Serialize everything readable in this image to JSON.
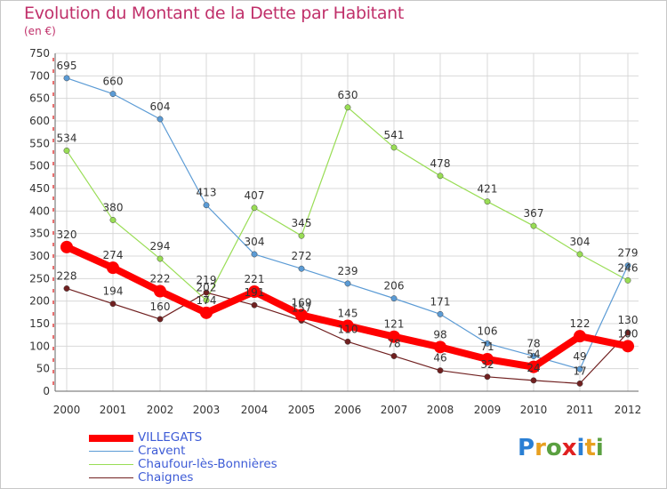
{
  "chart_data": {
    "type": "line",
    "title": "Evolution du Montant de la Dette par Habitant",
    "subtitle": "(en €)",
    "categories": [
      "2000",
      "2001",
      "2002",
      "2003",
      "2004",
      "2005",
      "2006",
      "2007",
      "2008",
      "2009",
      "2010",
      "2011",
      "2012"
    ],
    "ylim": [
      0,
      750
    ],
    "yticks": [
      0,
      50,
      100,
      150,
      200,
      250,
      300,
      350,
      400,
      450,
      500,
      550,
      600,
      650,
      700,
      750
    ],
    "grid": true,
    "legend_position": "bottom-left",
    "series": [
      {
        "name": "VILLEGATS",
        "color": "#ff0000",
        "values": [
          320,
          274,
          222,
          174,
          221,
          169,
          145,
          121,
          98,
          71,
          54,
          122,
          100
        ],
        "labels": [
          "320",
          "274",
          "222",
          "174",
          "221",
          "169",
          "145",
          "121",
          "98",
          "71",
          "54",
          "122",
          "100"
        ]
      },
      {
        "name": "Cravent",
        "color": "#5b9bd5",
        "values": [
          695,
          660,
          604,
          413,
          304,
          272,
          239,
          206,
          171,
          106,
          78,
          49,
          279
        ],
        "labels": [
          "695",
          "660",
          "604",
          "413",
          "304",
          "272",
          "239",
          "206",
          "171",
          "106",
          "78",
          "49",
          "279"
        ]
      },
      {
        "name": "Chaufour-lès-Bonnières",
        "color": "#99dd55",
        "values": [
          534,
          380,
          294,
          202,
          407,
          345,
          630,
          541,
          478,
          421,
          367,
          304,
          246
        ],
        "labels": [
          "534",
          "380",
          "294",
          "202",
          "407",
          "345",
          "630",
          "541",
          "478",
          "421",
          "367",
          "304",
          "246"
        ]
      },
      {
        "name": "Chaignes",
        "color": "#702020",
        "values": [
          228,
          194,
          160,
          219,
          191,
          157,
          110,
          78,
          46,
          32,
          24,
          17,
          130
        ],
        "labels": [
          "228",
          "194",
          "160",
          "219",
          "191",
          "157",
          "110",
          "78",
          "46",
          "32",
          "24",
          "17",
          "130"
        ]
      }
    ]
  },
  "branding": {
    "logo_letters": [
      "P",
      "r",
      "o",
      "x",
      "i",
      "t",
      "i"
    ],
    "logo_colors": [
      "#2a7fd4",
      "#e8a020",
      "#5aa040",
      "#e02020",
      "#2a7fd4",
      "#e8a020",
      "#5aa040"
    ]
  }
}
